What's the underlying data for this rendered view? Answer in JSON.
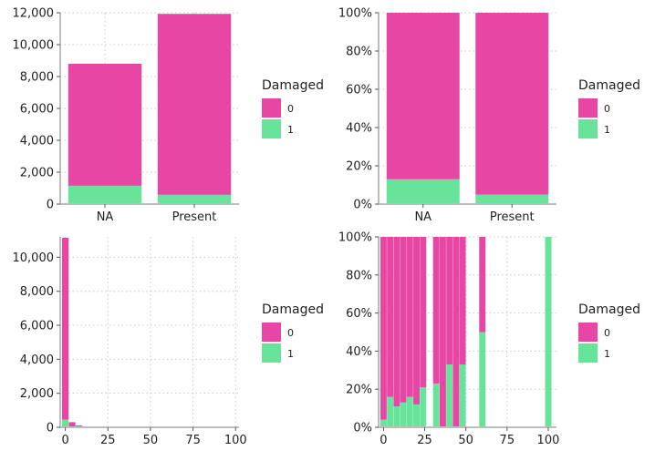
{
  "colors": {
    "damaged_0": "#E846A5",
    "damaged_1": "#67E39A"
  },
  "legend": {
    "title": "Damaged",
    "labels": [
      "0",
      "1"
    ]
  },
  "chart_data": [
    {
      "id": "count_by_status",
      "type": "bar",
      "stacked": true,
      "categories": [
        "NA",
        "Present"
      ],
      "series": [
        {
          "name": "0",
          "values": [
            7650,
            11350
          ]
        },
        {
          "name": "1",
          "values": [
            1150,
            580
          ]
        }
      ],
      "ylim": [
        0,
        12000
      ],
      "yticks": [
        0,
        2000,
        4000,
        6000,
        8000,
        10000,
        12000
      ],
      "ytick_labels": [
        "0",
        "2,000",
        "4,000",
        "6,000",
        "8,000",
        "10,000",
        "12,000"
      ],
      "legend_position": "right"
    },
    {
      "id": "proportion_by_status",
      "type": "bar",
      "stacked": true,
      "categories": [
        "NA",
        "Present"
      ],
      "series": [
        {
          "name": "0",
          "values": [
            0.87,
            0.95
          ]
        },
        {
          "name": "1",
          "values": [
            0.13,
            0.05
          ]
        }
      ],
      "ylim": [
        0,
        1
      ],
      "yticks": [
        0,
        0.2,
        0.4,
        0.6,
        0.8,
        1.0
      ],
      "ytick_labels": [
        "0%",
        "20%",
        "40%",
        "60%",
        "80%",
        "100%"
      ],
      "legend_position": "right"
    },
    {
      "id": "count_histogram",
      "type": "bar",
      "stacked": true,
      "bin_width": 4,
      "x": [
        0,
        4,
        8
      ],
      "series": [
        {
          "name": "0",
          "values": [
            10700,
            250,
            90
          ]
        },
        {
          "name": "1",
          "values": [
            450,
            50,
            20
          ]
        }
      ],
      "xlim": [
        -3,
        102
      ],
      "xticks": [
        0,
        25,
        50,
        75,
        100
      ],
      "ylim": [
        0,
        11200
      ],
      "yticks": [
        0,
        2000,
        4000,
        6000,
        8000,
        10000
      ],
      "ytick_labels": [
        "0",
        "2,000",
        "4,000",
        "6,000",
        "8,000",
        "10,000"
      ],
      "legend_position": "right"
    },
    {
      "id": "proportion_histogram",
      "type": "bar",
      "stacked": true,
      "bin_width": 4,
      "x": [
        0,
        4,
        8,
        12,
        16,
        20,
        24,
        32,
        36,
        40,
        44,
        48,
        52,
        60,
        100
      ],
      "series": [
        {
          "name": "0",
          "values": [
            0.96,
            0.84,
            0.89,
            0.87,
            0.84,
            0.88,
            0.79,
            0.77,
            1.0,
            0.67,
            1.0,
            0.67,
            0.0,
            0.5,
            0.0
          ]
        },
        {
          "name": "1",
          "values": [
            0.04,
            0.16,
            0.11,
            0.13,
            0.16,
            0.12,
            0.21,
            0.23,
            0.0,
            0.33,
            0.0,
            0.33,
            0.0,
            0.5,
            1.0
          ]
        }
      ],
      "xlim": [
        -3,
        105
      ],
      "xticks": [
        0,
        25,
        50,
        75,
        100
      ],
      "ylim": [
        0,
        1
      ],
      "yticks": [
        0,
        0.2,
        0.4,
        0.6,
        0.8,
        1.0
      ],
      "ytick_labels": [
        "0%",
        "20%",
        "40%",
        "60%",
        "80%",
        "100%"
      ],
      "legend_position": "right"
    }
  ]
}
